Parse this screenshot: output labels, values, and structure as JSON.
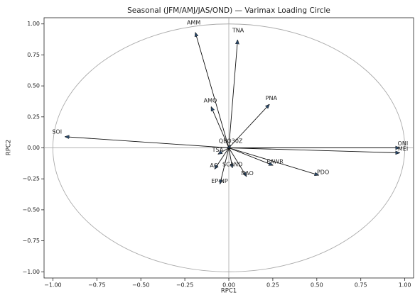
{
  "chart_data": {
    "type": "quiver",
    "title": "Seasonal (JFM/AMJ/JAS/OND) — Varimax Loading Circle",
    "x_label": "RPC1",
    "y_label": "RPC2",
    "labels": [
      "AMM",
      "TNA",
      "AMO",
      "PNA",
      "SOI",
      "QBO30Z",
      "ONI",
      "MEI",
      "TSA",
      "AO",
      "SCAND",
      "EAWR",
      "NAO",
      "PDO",
      "EP-NP"
    ],
    "x": [
      -0.19,
      0.05,
      -0.1,
      0.23,
      -0.93,
      0.01,
      0.97,
      0.97,
      -0.06,
      -0.08,
      0.02,
      0.25,
      0.1,
      0.51,
      -0.05
    ],
    "values": [
      0.93,
      0.87,
      0.33,
      0.35,
      0.09,
      0.02,
      0.0,
      -0.04,
      -0.05,
      -0.17,
      -0.16,
      -0.14,
      -0.23,
      -0.22,
      -0.29
    ],
    "color": "#2b4a6b",
    "circle_color": "#aaaaaa",
    "xlim": [
      -1.05,
      1.05
    ],
    "ylim": [
      -1.05,
      1.05
    ],
    "xticks": [
      {
        "value": -1,
        "label": "−1.00"
      },
      {
        "value": -0.75,
        "label": "−0.75"
      },
      {
        "value": -0.5,
        "label": "−0.50"
      },
      {
        "value": -0.25,
        "label": "−0.25"
      },
      {
        "value": 0,
        "label": "0.00"
      },
      {
        "value": 0.25,
        "label": "0.25"
      },
      {
        "value": 0.5,
        "label": "0.50"
      },
      {
        "value": 0.75,
        "label": "0.75"
      },
      {
        "value": 1,
        "label": "1.00"
      }
    ],
    "yticks": [
      {
        "value": -1,
        "label": "−1.00"
      },
      {
        "value": -0.75,
        "label": "−0.75"
      },
      {
        "value": -0.5,
        "label": "−0.50"
      },
      {
        "value": -0.25,
        "label": "−0.25"
      },
      {
        "value": 0,
        "label": "0.00"
      },
      {
        "value": 0.25,
        "label": "0.25"
      },
      {
        "value": 0.5,
        "label": "0.50"
      },
      {
        "value": 0.75,
        "label": "0.75"
      },
      {
        "value": 1,
        "label": "1.00"
      }
    ]
  }
}
